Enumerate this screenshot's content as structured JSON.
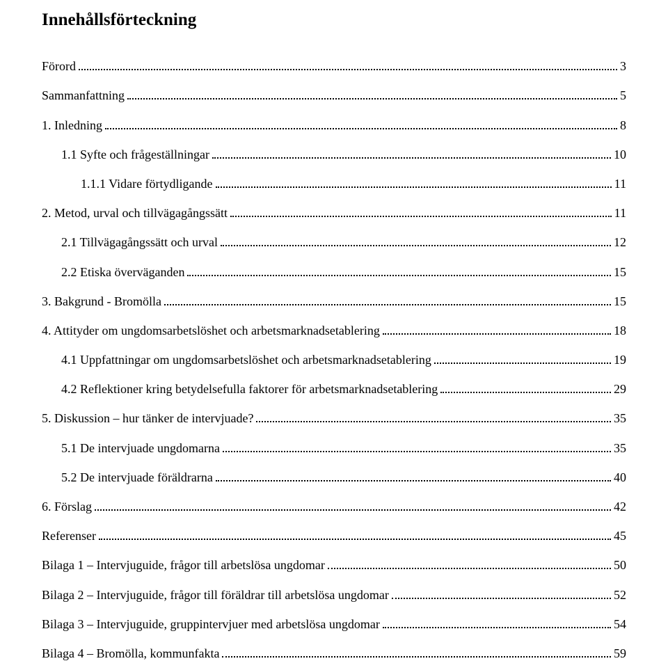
{
  "title": "Innehållsförteckning",
  "entries": [
    {
      "level": 0,
      "label": "Förord",
      "page": "3"
    },
    {
      "level": 0,
      "label": "Sammanfattning",
      "page": "5"
    },
    {
      "level": 0,
      "label": "1. Inledning",
      "page": "8"
    },
    {
      "level": 1,
      "label": "1.1 Syfte och frågeställningar",
      "page": "10"
    },
    {
      "level": 2,
      "label": "1.1.1 Vidare förtydligande",
      "page": "11"
    },
    {
      "level": 0,
      "label": "2. Metod, urval och tillvägagångssätt",
      "page": "11"
    },
    {
      "level": 1,
      "label": "2.1 Tillvägagångssätt och urval",
      "page": "12"
    },
    {
      "level": 1,
      "label": "2.2 Etiska överväganden",
      "page": "15"
    },
    {
      "level": 0,
      "label": "3. Bakgrund - Bromölla",
      "page": "15"
    },
    {
      "level": 0,
      "label": "4. Attityder om ungdomsarbetslöshet och arbetsmarknadsetablering",
      "page": "18"
    },
    {
      "level": 1,
      "label": "4.1 Uppfattningar om ungdomsarbetslöshet och arbetsmarknadsetablering",
      "page": "19"
    },
    {
      "level": 1,
      "label": "4.2 Reflektioner kring betydelsefulla faktorer för arbetsmarknadsetablering",
      "page": "29"
    },
    {
      "level": 0,
      "label": "5. Diskussion – hur tänker de intervjuade?",
      "page": "35"
    },
    {
      "level": 1,
      "label": "5.1 De intervjuade ungdomarna",
      "page": "35"
    },
    {
      "level": 1,
      "label": "5.2 De intervjuade föräldrarna",
      "page": "40"
    },
    {
      "level": 0,
      "label": "6. Förslag",
      "page": "42"
    },
    {
      "level": 0,
      "label": "Referenser",
      "page": "45"
    },
    {
      "level": 0,
      "label": "Bilaga 1 – Intervjuguide, frågor till arbetslösa ungdomar",
      "page": "50"
    },
    {
      "level": 0,
      "label": "Bilaga 2 – Intervjuguide, frågor till föräldrar till arbetslösa ungdomar",
      "page": "52"
    },
    {
      "level": 0,
      "label": "Bilaga 3 – Intervjuguide, gruppintervjuer med arbetslösa ungdomar",
      "page": "54"
    },
    {
      "level": 0,
      "label": "Bilaga 4 – Bromölla, kommunfakta",
      "page": "59"
    }
  ]
}
